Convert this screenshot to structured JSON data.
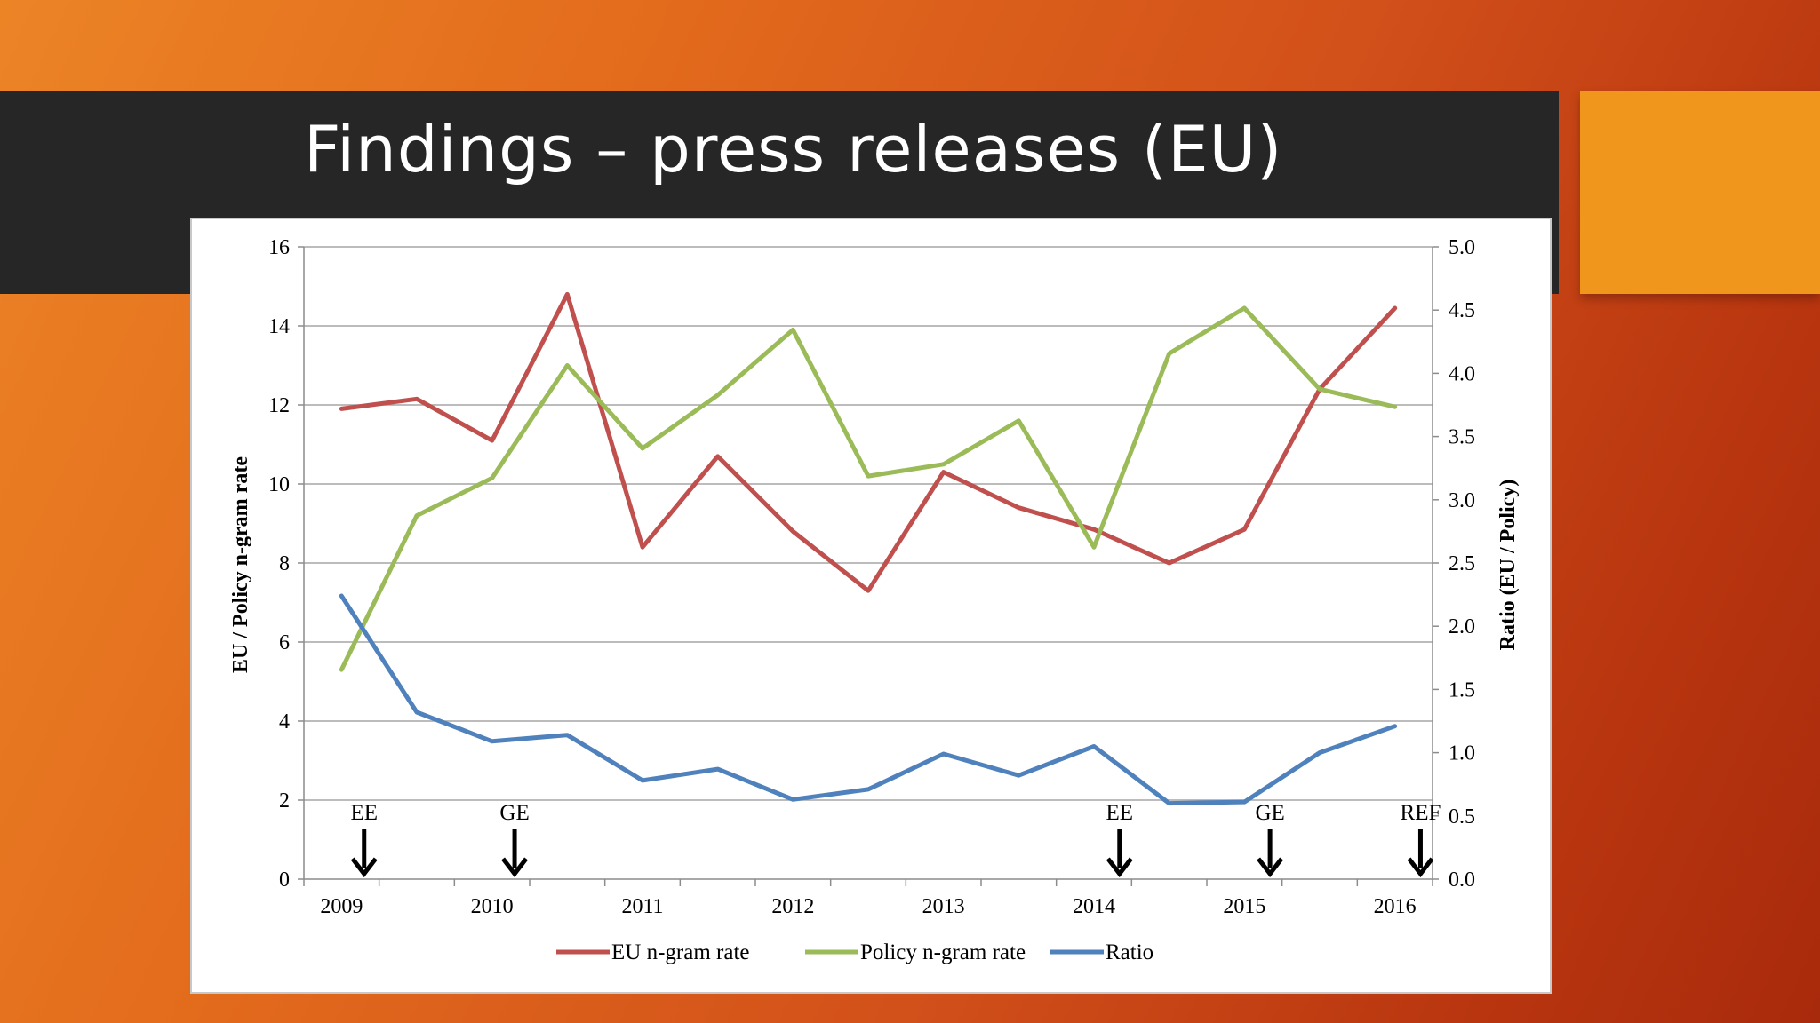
{
  "slide": {
    "title": "Findings – press releases (EU)"
  },
  "colors": {
    "title_bar": "#262626",
    "accent_box": "#f0961c",
    "eu_series": "#c0504d",
    "policy_series": "#9bbb59",
    "ratio_series": "#4f81bd"
  },
  "chart_data": {
    "type": "line",
    "x_ticks": [
      "2009",
      "2010",
      "2011",
      "2012",
      "2013",
      "2014",
      "2015",
      "2016"
    ],
    "ylabel": "EU / Policy n-gram rate",
    "y2label": "Ratio (EU / Policy)",
    "y_ticks": [
      "0",
      "2",
      "4",
      "6",
      "8",
      "10",
      "12",
      "14",
      "16"
    ],
    "y2_ticks": [
      "0.0",
      "0.5",
      "1.0",
      "1.5",
      "2.0",
      "2.5",
      "3.0",
      "3.5",
      "4.0",
      "4.5",
      "5.0"
    ],
    "ylim": [
      0,
      16
    ],
    "y2lim": [
      0,
      5
    ],
    "grid": true,
    "legend_position": "bottom",
    "x": [
      2009.0,
      2009.5,
      2010.0,
      2010.5,
      2011.0,
      2011.5,
      2012.0,
      2012.5,
      2013.0,
      2013.5,
      2014.0,
      2014.5,
      2015.0,
      2015.5,
      2016.0
    ],
    "series": [
      {
        "name": "EU n-gram rate",
        "axis": "left",
        "color": "#c0504d",
        "values": [
          11.9,
          12.15,
          11.1,
          14.8,
          8.4,
          10.7,
          8.8,
          7.3,
          10.3,
          9.4,
          8.85,
          8.0,
          8.85,
          12.4,
          14.45
        ]
      },
      {
        "name": "Policy n-gram rate",
        "axis": "left",
        "color": "#9bbb59",
        "values": [
          5.3,
          9.2,
          10.15,
          13.0,
          10.9,
          12.25,
          13.9,
          10.2,
          10.5,
          11.6,
          8.4,
          13.3,
          14.45,
          12.4,
          11.95
        ]
      },
      {
        "name": "Ratio",
        "axis": "right",
        "color": "#4f81bd",
        "values": [
          2.24,
          1.32,
          1.09,
          1.14,
          0.78,
          0.87,
          0.63,
          0.71,
          0.99,
          0.82,
          1.05,
          0.6,
          0.61,
          1.0,
          1.21
        ]
      }
    ],
    "annotations": [
      {
        "label": "EE",
        "x": 2009.15
      },
      {
        "label": "GE",
        "x": 2010.15
      },
      {
        "label": "EE",
        "x": 2014.17
      },
      {
        "label": "GE",
        "x": 2015.17
      },
      {
        "label": "REF",
        "x": 2016.17
      }
    ]
  }
}
